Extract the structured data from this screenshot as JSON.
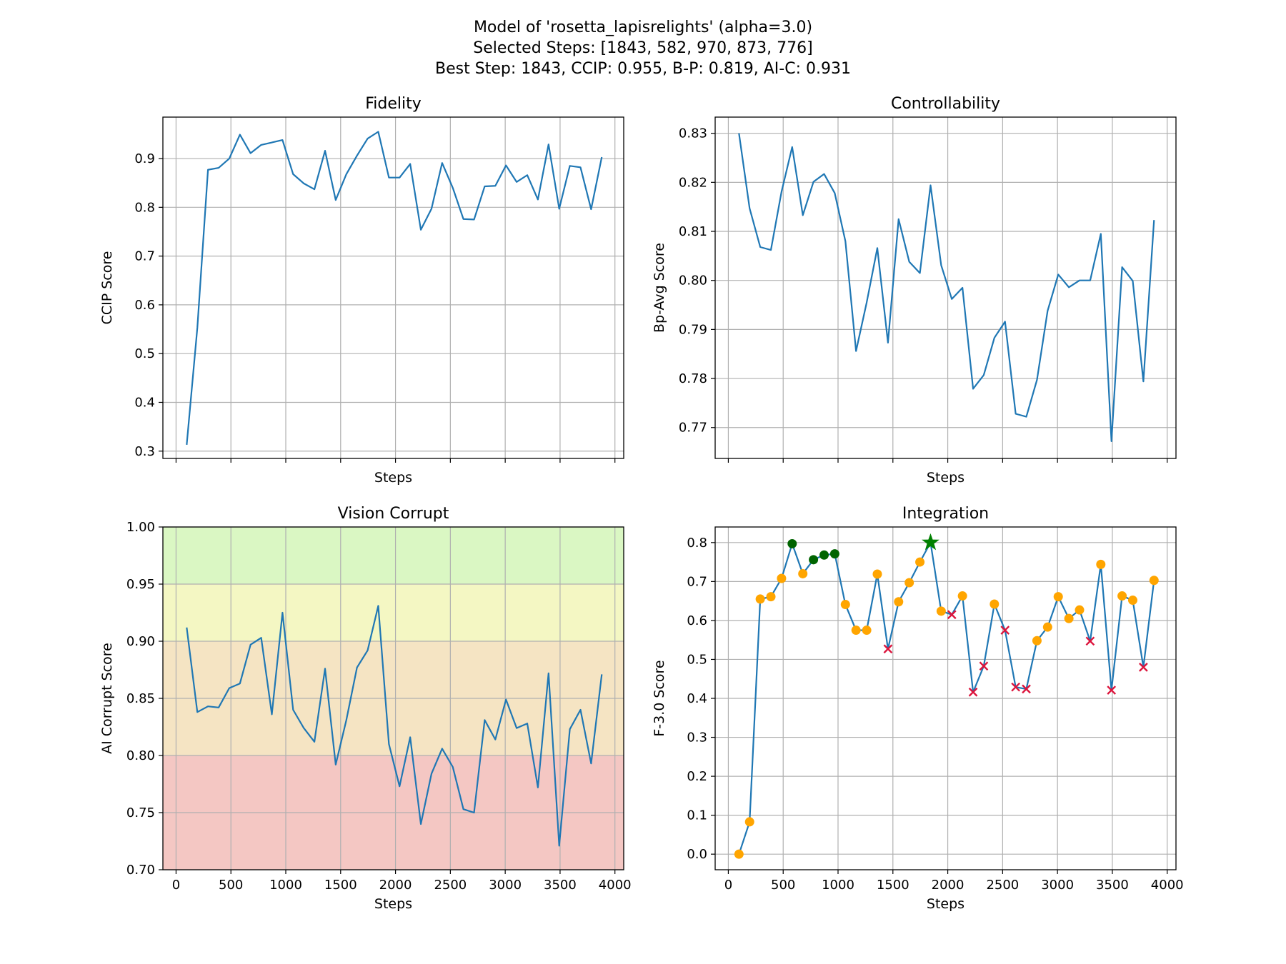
{
  "suptitle": [
    "Model of 'rosetta_lapisrelights' (alpha=3.0)",
    "Selected Steps: [1843, 582, 970, 873, 776]",
    "Best Step: 1843, CCIP: 0.955, B-P: 0.819, AI-C: 0.931"
  ],
  "colors": {
    "line": "#1f77b4",
    "grid": "#b0b0b0",
    "marker_normal": "#ffa500",
    "marker_selected": "#006400",
    "marker_rejected": "#dc143c",
    "marker_best": "#008000",
    "band_red": "#f4c7c3",
    "band_orange": "#f5e4c3",
    "band_yellow": "#f4f7c3",
    "band_green": "#daf7c3"
  },
  "chart_data": [
    {
      "id": "fidelity",
      "type": "line",
      "title": "Fidelity",
      "xlabel": "Steps",
      "ylabel": "CCIP Score",
      "xlim": [
        -120,
        4080
      ],
      "ylim": [
        0.285,
        0.985
      ],
      "xticks": [
        0,
        500,
        1000,
        1500,
        2000,
        2500,
        3000,
        3500,
        4000
      ],
      "show_xticklabels": false,
      "yticks": [
        0.3,
        0.4,
        0.5,
        0.6,
        0.7,
        0.8,
        0.9
      ],
      "yticklabels": [
        "0.3",
        "0.4",
        "0.5",
        "0.6",
        "0.7",
        "0.8",
        "0.9"
      ],
      "x": [
        97,
        194,
        291,
        388,
        485,
        582,
        679,
        776,
        873,
        970,
        1067,
        1164,
        1261,
        1358,
        1455,
        1552,
        1649,
        1746,
        1843,
        1940,
        2037,
        2134,
        2231,
        2328,
        2425,
        2522,
        2619,
        2716,
        2813,
        2910,
        3007,
        3104,
        3201,
        3298,
        3395,
        3492,
        3589,
        3686,
        3783,
        3880
      ],
      "y": [
        0.313,
        0.553,
        0.877,
        0.881,
        0.9,
        0.949,
        0.911,
        0.928,
        0.933,
        0.938,
        0.868,
        0.849,
        0.837,
        0.916,
        0.815,
        0.868,
        0.906,
        0.941,
        0.955,
        0.861,
        0.861,
        0.889,
        0.754,
        0.797,
        0.891,
        0.84,
        0.776,
        0.775,
        0.843,
        0.844,
        0.886,
        0.852,
        0.866,
        0.816,
        0.929,
        0.797,
        0.885,
        0.882,
        0.796,
        0.903
      ]
    },
    {
      "id": "controllability",
      "type": "line",
      "title": "Controllability",
      "xlabel": "Steps",
      "ylabel": "Bp-Avg Score",
      "xlim": [
        -120,
        4080
      ],
      "ylim": [
        0.7637,
        0.8333
      ],
      "xticks": [
        0,
        500,
        1000,
        1500,
        2000,
        2500,
        3000,
        3500,
        4000
      ],
      "show_xticklabels": false,
      "yticks": [
        0.77,
        0.78,
        0.79,
        0.8,
        0.81,
        0.82,
        0.83
      ],
      "yticklabels": [
        "0.77",
        "0.78",
        "0.79",
        "0.80",
        "0.81",
        "0.82",
        "0.83"
      ],
      "x": [
        97,
        194,
        291,
        388,
        485,
        582,
        679,
        776,
        873,
        970,
        1067,
        1164,
        1261,
        1358,
        1455,
        1552,
        1649,
        1746,
        1843,
        1940,
        2037,
        2134,
        2231,
        2328,
        2425,
        2522,
        2619,
        2716,
        2813,
        2910,
        3007,
        3104,
        3201,
        3298,
        3395,
        3492,
        3589,
        3686,
        3783,
        3880
      ],
      "y": [
        0.83,
        0.8147,
        0.8068,
        0.8062,
        0.8181,
        0.8272,
        0.8133,
        0.8201,
        0.8217,
        0.8178,
        0.808,
        0.7856,
        0.7955,
        0.8066,
        0.7873,
        0.8125,
        0.8038,
        0.8015,
        0.8194,
        0.8031,
        0.7962,
        0.7985,
        0.7779,
        0.7807,
        0.7883,
        0.7916,
        0.7728,
        0.7722,
        0.7797,
        0.7938,
        0.8012,
        0.7986,
        0.8,
        0.8,
        0.8095,
        0.7672,
        0.8027,
        0.7999,
        0.7794,
        0.8123
      ]
    },
    {
      "id": "vision-corrupt",
      "type": "line",
      "title": "Vision Corrupt",
      "xlabel": "Steps",
      "ylabel": "AI Corrupt Score",
      "xlim": [
        -120,
        4080
      ],
      "ylim": [
        0.7,
        1.0
      ],
      "xticks": [
        0,
        500,
        1000,
        1500,
        2000,
        2500,
        3000,
        3500,
        4000
      ],
      "show_xticklabels": true,
      "xticklabels": [
        "0",
        "500",
        "1000",
        "1500",
        "2000",
        "2500",
        "3000",
        "3500",
        "4000"
      ],
      "yticks": [
        0.7,
        0.75,
        0.8,
        0.85,
        0.9,
        0.95,
        1.0
      ],
      "yticklabels": [
        "0.70",
        "0.75",
        "0.80",
        "0.85",
        "0.90",
        "0.95",
        "1.00"
      ],
      "bands": [
        {
          "from": 0.7,
          "to": 0.8,
          "color": "#f4c7c3"
        },
        {
          "from": 0.8,
          "to": 0.9,
          "color": "#f5e4c3"
        },
        {
          "from": 0.9,
          "to": 0.95,
          "color": "#f4f7c3"
        },
        {
          "from": 0.95,
          "to": 1.0,
          "color": "#daf7c3"
        }
      ],
      "x": [
        97,
        194,
        291,
        388,
        485,
        582,
        679,
        776,
        873,
        970,
        1067,
        1164,
        1261,
        1358,
        1455,
        1552,
        1649,
        1746,
        1843,
        1940,
        2037,
        2134,
        2231,
        2328,
        2425,
        2522,
        2619,
        2716,
        2813,
        2910,
        3007,
        3104,
        3201,
        3298,
        3395,
        3492,
        3589,
        3686,
        3783,
        3880
      ],
      "y": [
        0.912,
        0.838,
        0.843,
        0.842,
        0.859,
        0.863,
        0.897,
        0.903,
        0.836,
        0.925,
        0.84,
        0.824,
        0.812,
        0.876,
        0.792,
        0.831,
        0.877,
        0.892,
        0.931,
        0.81,
        0.773,
        0.816,
        0.74,
        0.784,
        0.806,
        0.79,
        0.753,
        0.75,
        0.831,
        0.814,
        0.849,
        0.824,
        0.828,
        0.772,
        0.872,
        0.721,
        0.823,
        0.84,
        0.793,
        0.871
      ]
    },
    {
      "id": "integration",
      "type": "line",
      "title": "Integration",
      "xlabel": "Steps",
      "ylabel": "F-3.0 Score",
      "xlim": [
        -120,
        4080
      ],
      "ylim": [
        -0.04,
        0.84
      ],
      "xticks": [
        0,
        500,
        1000,
        1500,
        2000,
        2500,
        3000,
        3500,
        4000
      ],
      "show_xticklabels": true,
      "xticklabels": [
        "0",
        "500",
        "1000",
        "1500",
        "2000",
        "2500",
        "3000",
        "3500",
        "4000"
      ],
      "yticks": [
        0.0,
        0.1,
        0.2,
        0.3,
        0.4,
        0.5,
        0.6,
        0.7,
        0.8
      ],
      "yticklabels": [
        "0.0",
        "0.1",
        "0.2",
        "0.3",
        "0.4",
        "0.5",
        "0.6",
        "0.7",
        "0.8"
      ],
      "x": [
        97,
        194,
        291,
        388,
        485,
        582,
        679,
        776,
        873,
        970,
        1067,
        1164,
        1261,
        1358,
        1455,
        1552,
        1649,
        1746,
        1843,
        1940,
        2037,
        2134,
        2231,
        2328,
        2425,
        2522,
        2619,
        2716,
        2813,
        2910,
        3007,
        3104,
        3201,
        3298,
        3395,
        3492,
        3589,
        3686,
        3783,
        3880
      ],
      "y": [
        0.0,
        0.083,
        0.655,
        0.661,
        0.708,
        0.797,
        0.72,
        0.756,
        0.768,
        0.771,
        0.641,
        0.575,
        0.575,
        0.719,
        0.527,
        0.648,
        0.697,
        0.75,
        0.8,
        0.624,
        0.615,
        0.663,
        0.416,
        0.483,
        0.642,
        0.575,
        0.429,
        0.424,
        0.548,
        0.583,
        0.661,
        0.605,
        0.627,
        0.547,
        0.744,
        0.421,
        0.663,
        0.652,
        0.48,
        0.703
      ],
      "markers": [
        "normal",
        "normal",
        "normal",
        "normal",
        "normal",
        "selected",
        "normal",
        "selected",
        "selected",
        "selected",
        "normal",
        "normal",
        "normal",
        "normal",
        "rejected",
        "normal",
        "normal",
        "normal",
        "best",
        "normal",
        "rejected",
        "normal",
        "rejected",
        "rejected",
        "normal",
        "rejected",
        "rejected",
        "rejected",
        "normal",
        "normal",
        "normal",
        "normal",
        "normal",
        "rejected",
        "normal",
        "rejected",
        "normal",
        "normal",
        "rejected",
        "normal"
      ]
    }
  ]
}
